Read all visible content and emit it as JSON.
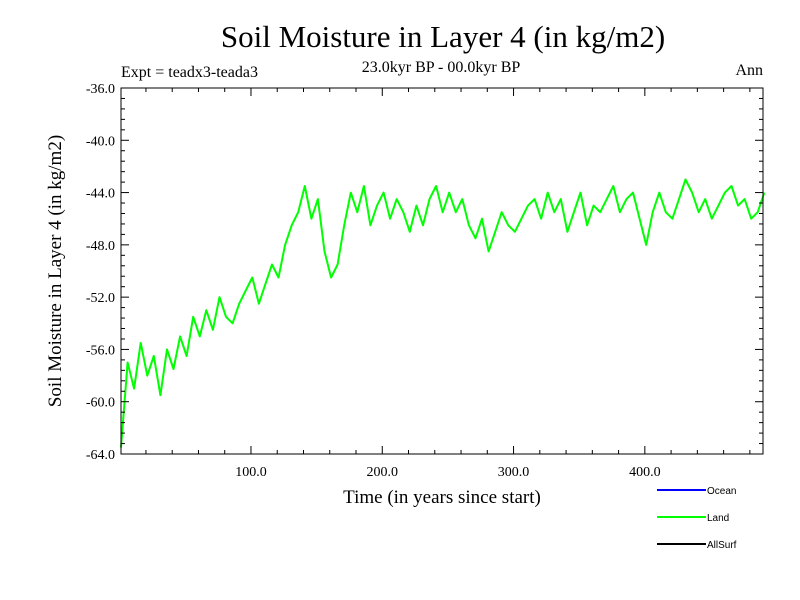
{
  "chart_data": {
    "type": "line",
    "title": "Soil Moisture in Layer 4 (in kg/m2)",
    "subtitle": "23.0kyr BP - 00.0kyr BP",
    "left_label": "Expt = teadx3-teada3",
    "right_label": "Ann",
    "xlabel": "Time (in years since start)",
    "ylabel": "Soil Moisture in Layer 4 (in kg/m2)",
    "xlim": [
      1,
      490
    ],
    "ylim": [
      -64.0,
      -36.0
    ],
    "x_ticks": [
      100,
      200,
      300,
      400
    ],
    "x_tick_labels": [
      "100.0",
      "200.0",
      "300.0",
      "400.0"
    ],
    "y_ticks": [
      -64,
      -60,
      -56,
      -52,
      -48,
      -44,
      -40,
      -36
    ],
    "y_tick_labels": [
      "-64.0",
      "-60.0",
      "-56.0",
      "-52.0",
      "-48.0",
      "-44.0",
      "-40.0",
      "-36.0"
    ],
    "legend_position": "bottom-right",
    "series": [
      {
        "name": "Ocean",
        "color": "#0000ff",
        "values": []
      },
      {
        "name": "Land",
        "color": "#00ff00",
        "x_start": 1,
        "x_step": 5,
        "values": [
          -63.5,
          -57.0,
          -59.0,
          -55.5,
          -58.0,
          -56.5,
          -59.5,
          -56.0,
          -57.5,
          -55.0,
          -56.5,
          -53.5,
          -55.0,
          -53.0,
          -54.5,
          -52.0,
          -53.5,
          -54.0,
          -52.5,
          -51.5,
          -50.5,
          -52.5,
          -51.0,
          -49.5,
          -50.5,
          -48.0,
          -46.5,
          -45.5,
          -43.5,
          -46.0,
          -44.5,
          -48.5,
          -50.5,
          -49.5,
          -46.5,
          -44.0,
          -45.5,
          -43.5,
          -46.5,
          -45.0,
          -44.0,
          -46.0,
          -44.5,
          -45.5,
          -47.0,
          -45.0,
          -46.5,
          -44.5,
          -43.5,
          -45.5,
          -44.0,
          -45.5,
          -44.5,
          -46.5,
          -47.5,
          -46.0,
          -48.5,
          -47.0,
          -45.5,
          -46.5,
          -47.0,
          -46.0,
          -45.0,
          -44.5,
          -46.0,
          -44.0,
          -45.5,
          -44.5,
          -47.0,
          -45.5,
          -44.0,
          -46.5,
          -45.0,
          -45.5,
          -44.5,
          -43.5,
          -45.5,
          -44.5,
          -44.0,
          -46.0,
          -48.0,
          -45.5,
          -44.0,
          -45.5,
          -46.0,
          -44.5,
          -43.0,
          -44.0,
          -45.5,
          -44.5,
          -46.0,
          -45.0,
          -44.0,
          -43.5,
          -45.0,
          -44.5,
          -46.0,
          -45.5,
          -44.0
        ]
      },
      {
        "name": "AllSurf",
        "color": "#000000",
        "values": []
      }
    ]
  }
}
